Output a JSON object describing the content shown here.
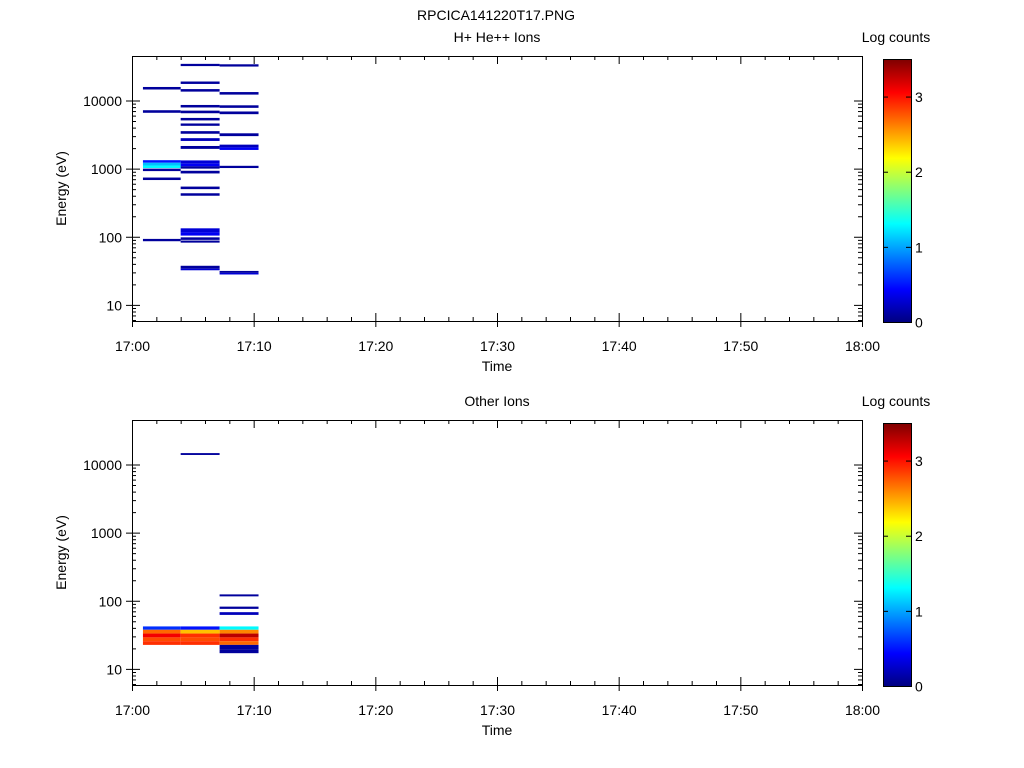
{
  "title": "RPCICA141220T17.PNG",
  "colors": {
    "colormap": [
      "#00007f",
      "#0000ff",
      "#007fff",
      "#00ffff",
      "#7fff7f",
      "#ffff00",
      "#ff7f00",
      "#ff0000",
      "#7f0000"
    ]
  },
  "chart_data": [
    {
      "type": "heatmap",
      "title": "H+ He++ Ions",
      "xlabel": "Time",
      "ylabel": "Energy (eV)",
      "yscale": "log",
      "x_ticks": [
        "17:00",
        "17:10",
        "17:20",
        "17:30",
        "17:40",
        "17:50",
        "18:00"
      ],
      "xlim_minutes": [
        0,
        60
      ],
      "y_ticks": [
        "10",
        "100",
        "1000",
        "10000"
      ],
      "ylim": [
        5.8,
        45000
      ],
      "colorbar": {
        "label": "Log counts",
        "range": [
          0,
          3.5
        ],
        "ticks": [
          "0",
          "1",
          "2",
          "3"
        ]
      },
      "cells": [
        {
          "t0": 0.9,
          "t1": 4.0,
          "e0": 14500,
          "e1": 15800,
          "v": 0.1
        },
        {
          "t0": 0.9,
          "t1": 4.0,
          "e0": 6600,
          "e1": 7200,
          "v": 0.1
        },
        {
          "t0": 0.9,
          "t1": 4.0,
          "e0": 1220,
          "e1": 1330,
          "v": 0.5
        },
        {
          "t0": 0.9,
          "t1": 4.0,
          "e0": 1110,
          "e1": 1220,
          "v": 1.1
        },
        {
          "t0": 0.9,
          "t1": 4.0,
          "e0": 1020,
          "e1": 1110,
          "v": 1.3
        },
        {
          "t0": 0.9,
          "t1": 4.0,
          "e0": 920,
          "e1": 1000,
          "v": 0.1
        },
        {
          "t0": 0.9,
          "t1": 4.0,
          "e0": 680,
          "e1": 740,
          "v": 0.1
        },
        {
          "t0": 0.9,
          "t1": 4.0,
          "e0": 86,
          "e1": 93,
          "v": 0.1
        },
        {
          "t0": 4.0,
          "t1": 7.2,
          "e0": 32000,
          "e1": 34500,
          "v": 0.1
        },
        {
          "t0": 4.0,
          "t1": 7.2,
          "e0": 17500,
          "e1": 19000,
          "v": 0.1
        },
        {
          "t0": 4.0,
          "t1": 7.2,
          "e0": 13500,
          "e1": 14700,
          "v": 0.1
        },
        {
          "t0": 4.0,
          "t1": 7.2,
          "e0": 7900,
          "e1": 8600,
          "v": 0.1
        },
        {
          "t0": 4.0,
          "t1": 7.2,
          "e0": 6500,
          "e1": 7100,
          "v": 0.1
        },
        {
          "t0": 4.0,
          "t1": 7.2,
          "e0": 5100,
          "e1": 5550,
          "v": 0.1
        },
        {
          "t0": 4.0,
          "t1": 7.2,
          "e0": 4250,
          "e1": 4600,
          "v": 0.1
        },
        {
          "t0": 4.0,
          "t1": 7.2,
          "e0": 3250,
          "e1": 3550,
          "v": 0.1
        },
        {
          "t0": 4.0,
          "t1": 7.2,
          "e0": 2550,
          "e1": 2800,
          "v": 0.2
        },
        {
          "t0": 4.0,
          "t1": 7.2,
          "e0": 1950,
          "e1": 2150,
          "v": 0.1
        },
        {
          "t0": 4.0,
          "t1": 7.2,
          "e0": 1180,
          "e1": 1320,
          "v": 0.3
        },
        {
          "t0": 4.0,
          "t1": 7.2,
          "e0": 1080,
          "e1": 1180,
          "v": 0.4
        },
        {
          "t0": 4.0,
          "t1": 7.2,
          "e0": 1000,
          "e1": 1080,
          "v": 0.1
        },
        {
          "t0": 4.0,
          "t1": 7.2,
          "e0": 850,
          "e1": 930,
          "v": 0.1
        },
        {
          "t0": 4.0,
          "t1": 7.2,
          "e0": 500,
          "e1": 545,
          "v": 0.1
        },
        {
          "t0": 4.0,
          "t1": 7.2,
          "e0": 400,
          "e1": 435,
          "v": 0.1
        },
        {
          "t0": 4.0,
          "t1": 7.2,
          "e0": 116,
          "e1": 133,
          "v": 0.3
        },
        {
          "t0": 4.0,
          "t1": 7.2,
          "e0": 104,
          "e1": 116,
          "v": 0.4
        },
        {
          "t0": 4.0,
          "t1": 7.2,
          "e0": 90,
          "e1": 98,
          "v": 0.1
        },
        {
          "t0": 4.0,
          "t1": 7.2,
          "e0": 82,
          "e1": 88,
          "v": 0.1
        },
        {
          "t0": 4.0,
          "t1": 7.2,
          "e0": 34,
          "e1": 37.5,
          "v": 0.1
        },
        {
          "t0": 4.0,
          "t1": 7.2,
          "e0": 32.5,
          "e1": 34,
          "v": 0.3
        },
        {
          "t0": 7.2,
          "t1": 10.4,
          "e0": 31500,
          "e1": 34000,
          "v": 0.1
        },
        {
          "t0": 7.2,
          "t1": 10.4,
          "e0": 12200,
          "e1": 13300,
          "v": 0.1
        },
        {
          "t0": 7.2,
          "t1": 10.4,
          "e0": 7800,
          "e1": 8500,
          "v": 0.1
        },
        {
          "t0": 7.2,
          "t1": 10.4,
          "e0": 6300,
          "e1": 6900,
          "v": 0.1
        },
        {
          "t0": 7.2,
          "t1": 10.4,
          "e0": 3000,
          "e1": 3300,
          "v": 0.1
        },
        {
          "t0": 7.2,
          "t1": 10.4,
          "e0": 2050,
          "e1": 2250,
          "v": 0.2
        },
        {
          "t0": 7.2,
          "t1": 10.4,
          "e0": 1880,
          "e1": 2050,
          "v": 0.4
        },
        {
          "t0": 7.2,
          "t1": 10.4,
          "e0": 1020,
          "e1": 1100,
          "v": 0.1
        },
        {
          "t0": 7.2,
          "t1": 10.4,
          "e0": 29.5,
          "e1": 31.5,
          "v": 0.1
        },
        {
          "t0": 7.2,
          "t1": 10.4,
          "e0": 28,
          "e1": 29.5,
          "v": 0.3
        }
      ]
    },
    {
      "type": "heatmap",
      "title": "Other Ions",
      "xlabel": "Time",
      "ylabel": "Energy (eV)",
      "yscale": "log",
      "x_ticks": [
        "17:00",
        "17:10",
        "17:20",
        "17:30",
        "17:40",
        "17:50",
        "18:00"
      ],
      "xlim_minutes": [
        0,
        60
      ],
      "y_ticks": [
        "10",
        "100",
        "1000",
        "10000"
      ],
      "ylim": [
        5.8,
        45000
      ],
      "colorbar": {
        "label": "Log counts",
        "range": [
          0,
          3.5
        ],
        "ticks": [
          "0",
          "1",
          "2",
          "3"
        ]
      },
      "cells": [
        {
          "t0": 4.0,
          "t1": 7.2,
          "e0": 13800,
          "e1": 14700,
          "v": 0.1
        },
        {
          "t0": 0.9,
          "t1": 4.0,
          "e0": 37.5,
          "e1": 42,
          "v": 0.6
        },
        {
          "t0": 0.9,
          "t1": 4.0,
          "e0": 33,
          "e1": 37.5,
          "v": 2.7
        },
        {
          "t0": 0.9,
          "t1": 4.0,
          "e0": 29,
          "e1": 33,
          "v": 3.1
        },
        {
          "t0": 0.9,
          "t1": 4.0,
          "e0": 25.5,
          "e1": 29,
          "v": 2.8
        },
        {
          "t0": 0.9,
          "t1": 4.0,
          "e0": 22.5,
          "e1": 25.5,
          "v": 2.9
        },
        {
          "t0": 4.0,
          "t1": 7.2,
          "e0": 37.5,
          "e1": 42,
          "v": 0.5
        },
        {
          "t0": 4.0,
          "t1": 7.2,
          "e0": 33,
          "e1": 37.5,
          "v": 2.4
        },
        {
          "t0": 4.0,
          "t1": 7.2,
          "e0": 29,
          "e1": 33,
          "v": 2.9
        },
        {
          "t0": 4.0,
          "t1": 7.2,
          "e0": 25.5,
          "e1": 29,
          "v": 2.8
        },
        {
          "t0": 4.0,
          "t1": 7.2,
          "e0": 22.5,
          "e1": 25.5,
          "v": 2.9
        },
        {
          "t0": 7.2,
          "t1": 10.4,
          "e0": 116,
          "e1": 124,
          "v": 0.1
        },
        {
          "t0": 7.2,
          "t1": 10.4,
          "e0": 76,
          "e1": 82,
          "v": 0.1
        },
        {
          "t0": 7.2,
          "t1": 10.4,
          "e0": 62,
          "e1": 68,
          "v": 0.2
        },
        {
          "t0": 7.2,
          "t1": 10.4,
          "e0": 37.5,
          "e1": 42,
          "v": 1.3
        },
        {
          "t0": 7.2,
          "t1": 10.4,
          "e0": 33,
          "e1": 37.5,
          "v": 2.6
        },
        {
          "t0": 7.2,
          "t1": 10.4,
          "e0": 29,
          "e1": 33,
          "v": 3.3
        },
        {
          "t0": 7.2,
          "t1": 10.4,
          "e0": 25.5,
          "e1": 29,
          "v": 2.9
        },
        {
          "t0": 7.2,
          "t1": 10.4,
          "e0": 22.5,
          "e1": 25.5,
          "v": 2.7
        },
        {
          "t0": 7.2,
          "t1": 10.4,
          "e0": 19.5,
          "e1": 22.5,
          "v": 0.1
        },
        {
          "t0": 7.2,
          "t1": 10.4,
          "e0": 17,
          "e1": 19.5,
          "v": 0.1
        }
      ]
    }
  ]
}
